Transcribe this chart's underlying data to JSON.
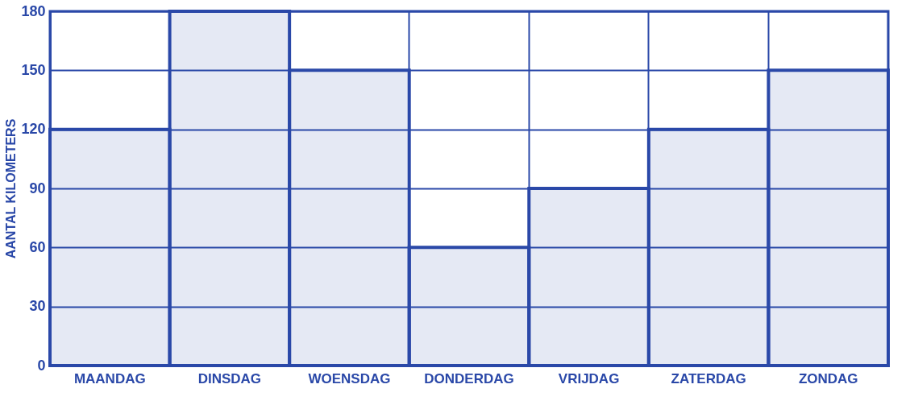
{
  "chart_data": {
    "type": "bar",
    "ylabel": "AANTAL KILOMETERS",
    "categories": [
      "MAANDAG",
      "DINSDAG",
      "WOENSDAG",
      "DONDERDAG",
      "VRIJDAG",
      "ZATERDAG",
      "ZONDAG"
    ],
    "values": [
      120,
      180,
      150,
      60,
      90,
      120,
      150
    ],
    "color": "#2a48a8",
    "ylim": [
      0,
      180
    ],
    "yticks": [
      0,
      30,
      60,
      90,
      120,
      150,
      180
    ],
    "grid": true
  }
}
